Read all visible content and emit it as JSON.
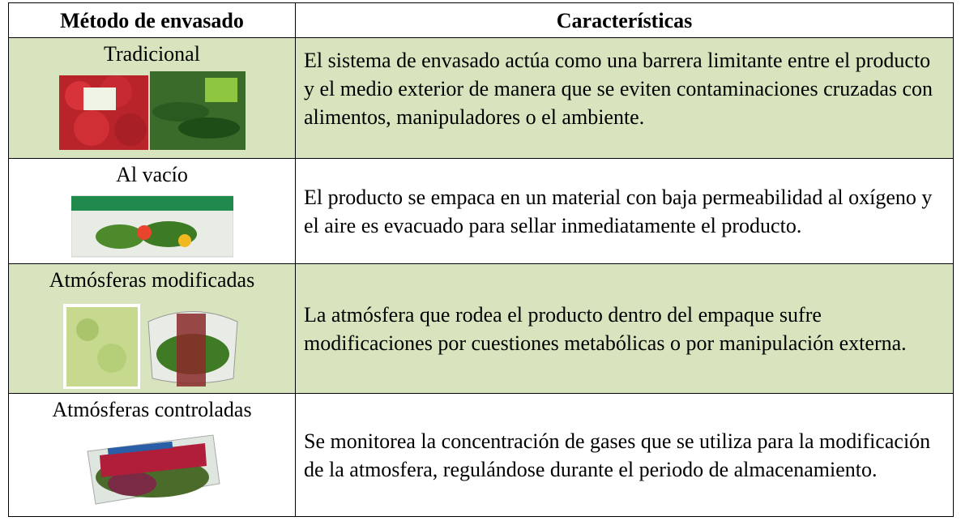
{
  "table": {
    "header": [
      "Método de envasado",
      "Características"
    ],
    "rows": [
      [
        "Tradicional",
        "El sistema de envasado actúa como una barrera limitante entre el producto y el medio exterior de manera que se eviten contaminaciones cruzadas con alimentos, manipuladores o el ambiente."
      ],
      [
        "Al vacío",
        "El producto se empaca en un material con baja permeabilidad al oxígeno y el aire es evacuado para sellar inmediatamente el producto."
      ],
      [
        "Atmósferas modificadas",
        "La atmósfera que rodea el producto dentro del empaque sufre modificaciones por cuestiones metabólicas o por manipulación externa."
      ],
      [
        "Atmósferas controladas",
        "Se monitorea la concentración de gases que se utiliza para la modificación de la atmosfera, regulándose durante el periodo de almacenamiento."
      ]
    ]
  }
}
